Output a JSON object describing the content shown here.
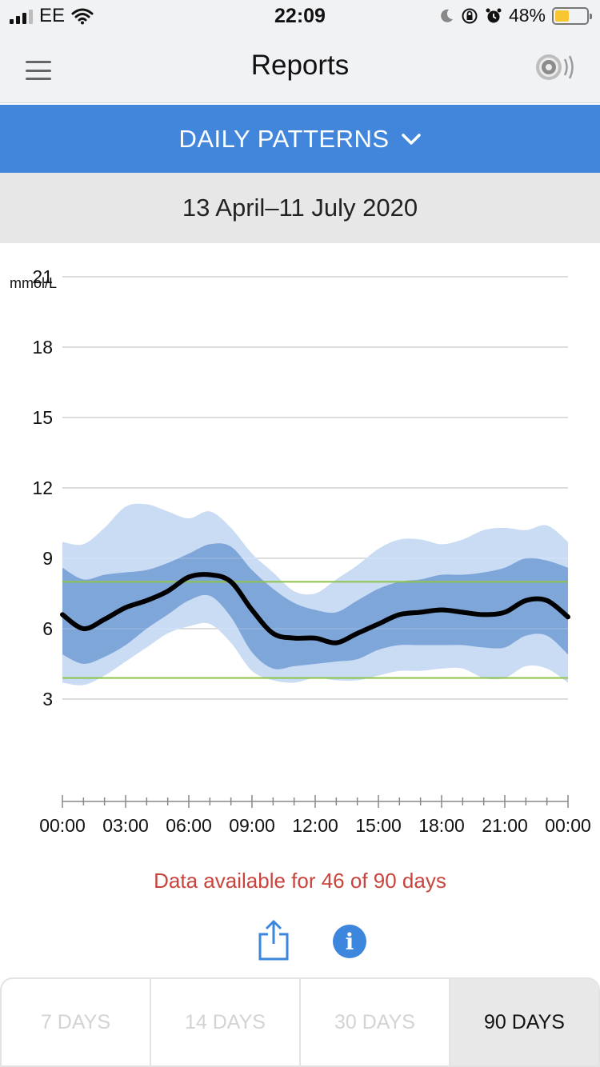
{
  "status_bar": {
    "carrier": "EE",
    "time": "22:09",
    "battery_percent": "48%"
  },
  "nav": {
    "title": "Reports",
    "menu_icon": "hamburger-icon",
    "sensor_icon": "sensor-scan-icon"
  },
  "report_selector": {
    "label": "DAILY PATTERNS",
    "icon": "chevron-down-icon"
  },
  "date_range": "13 April–11 July 2020",
  "chart_data": {
    "type": "area",
    "unit_label": "mmol/L",
    "ylim": [
      0,
      21
    ],
    "y_ticks": [
      21,
      18,
      15,
      12,
      9,
      6,
      3
    ],
    "x_tick_labels": [
      "00:00",
      "03:00",
      "06:00",
      "09:00",
      "12:00",
      "15:00",
      "18:00",
      "21:00",
      "00:00"
    ],
    "x_hours": [
      0,
      1,
      2,
      3,
      4,
      5,
      6,
      7,
      8,
      9,
      10,
      11,
      12,
      13,
      14,
      15,
      16,
      17,
      18,
      19,
      20,
      21,
      22,
      23,
      24
    ],
    "target_range": [
      3.9,
      8.0
    ],
    "series": [
      {
        "role": "p90",
        "values": [
          9.7,
          9.6,
          10.3,
          11.2,
          11.3,
          11.0,
          10.7,
          11.0,
          10.3,
          9.2,
          8.4,
          7.6,
          7.5,
          8.1,
          8.7,
          9.4,
          9.8,
          9.8,
          9.6,
          9.8,
          10.2,
          10.3,
          10.2,
          10.4,
          9.7
        ]
      },
      {
        "role": "p75",
        "values": [
          8.6,
          8.1,
          8.3,
          8.4,
          8.5,
          8.8,
          9.2,
          9.6,
          9.5,
          8.5,
          7.7,
          7.1,
          6.8,
          6.7,
          7.2,
          7.7,
          8.0,
          8.1,
          8.3,
          8.3,
          8.4,
          8.6,
          9.0,
          8.9,
          8.6
        ]
      },
      {
        "role": "median",
        "values": [
          6.6,
          6.0,
          6.4,
          6.9,
          7.2,
          7.6,
          8.2,
          8.3,
          8.0,
          6.8,
          5.8,
          5.6,
          5.6,
          5.4,
          5.8,
          6.2,
          6.6,
          6.7,
          6.8,
          6.7,
          6.6,
          6.7,
          7.2,
          7.2,
          6.5
        ]
      },
      {
        "role": "p25",
        "values": [
          4.9,
          4.5,
          4.8,
          5.3,
          6.0,
          6.6,
          7.2,
          7.4,
          6.5,
          5.0,
          4.3,
          4.4,
          4.5,
          4.6,
          4.7,
          5.1,
          5.3,
          5.3,
          5.3,
          5.3,
          5.2,
          5.2,
          5.7,
          5.7,
          4.9
        ]
      },
      {
        "role": "p10",
        "values": [
          3.7,
          3.6,
          4.0,
          4.6,
          5.2,
          5.8,
          6.1,
          6.2,
          5.4,
          4.2,
          3.8,
          3.7,
          3.9,
          3.8,
          3.8,
          4.0,
          4.2,
          4.2,
          4.3,
          4.3,
          3.9,
          3.9,
          4.4,
          4.3,
          3.7
        ]
      }
    ],
    "colors": {
      "outer_band": "#c9dcf4",
      "inner_band": "#7fa6d8",
      "median_line": "#000000",
      "target_lines": "#8fc34a",
      "grid": "#bbbbbb"
    }
  },
  "data_note": "Data available for 46 of 90 days",
  "actions": {
    "share_icon": "share-icon",
    "info_icon": "info-icon",
    "info_glyph": "i"
  },
  "period_options": [
    {
      "label": "7 DAYS",
      "active": false
    },
    {
      "label": "14 DAYS",
      "active": false
    },
    {
      "label": "30 DAYS",
      "active": false
    },
    {
      "label": "90 DAYS",
      "active": true
    }
  ]
}
